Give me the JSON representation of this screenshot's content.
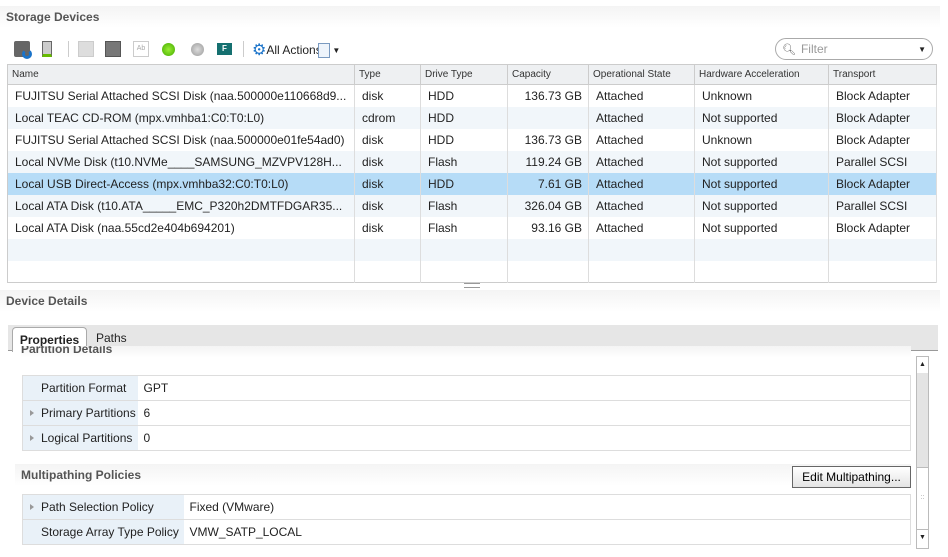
{
  "title": "Storage Devices",
  "toolbar": {
    "all_actions": "All Actions",
    "filter_placeholder": "Filter"
  },
  "columns": [
    "Name",
    "Type",
    "Drive Type",
    "Capacity",
    "Operational State",
    "Hardware Acceleration",
    "Transport"
  ],
  "rows": [
    [
      "FUJITSU Serial Attached SCSI Disk (naa.500000e110668d9...",
      "disk",
      "HDD",
      "136.73 GB",
      "Attached",
      "Unknown",
      "Block Adapter"
    ],
    [
      "Local TEAC CD-ROM (mpx.vmhba1:C0:T0:L0)",
      "cdrom",
      "HDD",
      "",
      "Attached",
      "Not supported",
      "Block Adapter"
    ],
    [
      "FUJITSU Serial Attached SCSI Disk (naa.500000e01fe54ad0)",
      "disk",
      "HDD",
      "136.73 GB",
      "Attached",
      "Unknown",
      "Block Adapter"
    ],
    [
      "Local NVMe Disk (t10.NVMe____SAMSUNG_MZVPV128H...",
      "disk",
      "Flash",
      "119.24 GB",
      "Attached",
      "Not supported",
      "Parallel SCSI"
    ],
    [
      "Local USB Direct-Access (mpx.vmhba32:C0:T0:L0)",
      "disk",
      "HDD",
      "7.61 GB",
      "Attached",
      "Not supported",
      "Block Adapter"
    ],
    [
      "Local ATA Disk (t10.ATA_____EMC_P320h2DMTFDGAR35...",
      "disk",
      "Flash",
      "326.04 GB",
      "Attached",
      "Not supported",
      "Parallel SCSI"
    ],
    [
      "Local ATA Disk (naa.55cd2e404b694201)",
      "disk",
      "Flash",
      "93.16 GB",
      "Attached",
      "Not supported",
      "Block Adapter"
    ]
  ],
  "selected_row": 4,
  "details": {
    "title": "Device Details",
    "tabs": [
      "Properties",
      "Paths"
    ],
    "active_tab": "Properties",
    "partition_title": "Partition Details",
    "partition": [
      {
        "k": "Partition Format",
        "v": "GPT",
        "expand": false
      },
      {
        "k": "Primary Partitions",
        "v": "6",
        "expand": true
      },
      {
        "k": "Logical Partitions",
        "v": "0",
        "expand": true
      }
    ],
    "multipath_title": "Multipathing Policies",
    "edit_button": "Edit Multipathing...",
    "multipath": [
      {
        "k": "Path Selection Policy",
        "v": "Fixed (VMware)",
        "expand": true
      },
      {
        "k": "Storage Array Type Policy",
        "v": "VMW_SATP_LOCAL",
        "expand": false
      }
    ]
  },
  "colors": {
    "selected": "#b6dcf7",
    "accent": "#1a73c9"
  }
}
